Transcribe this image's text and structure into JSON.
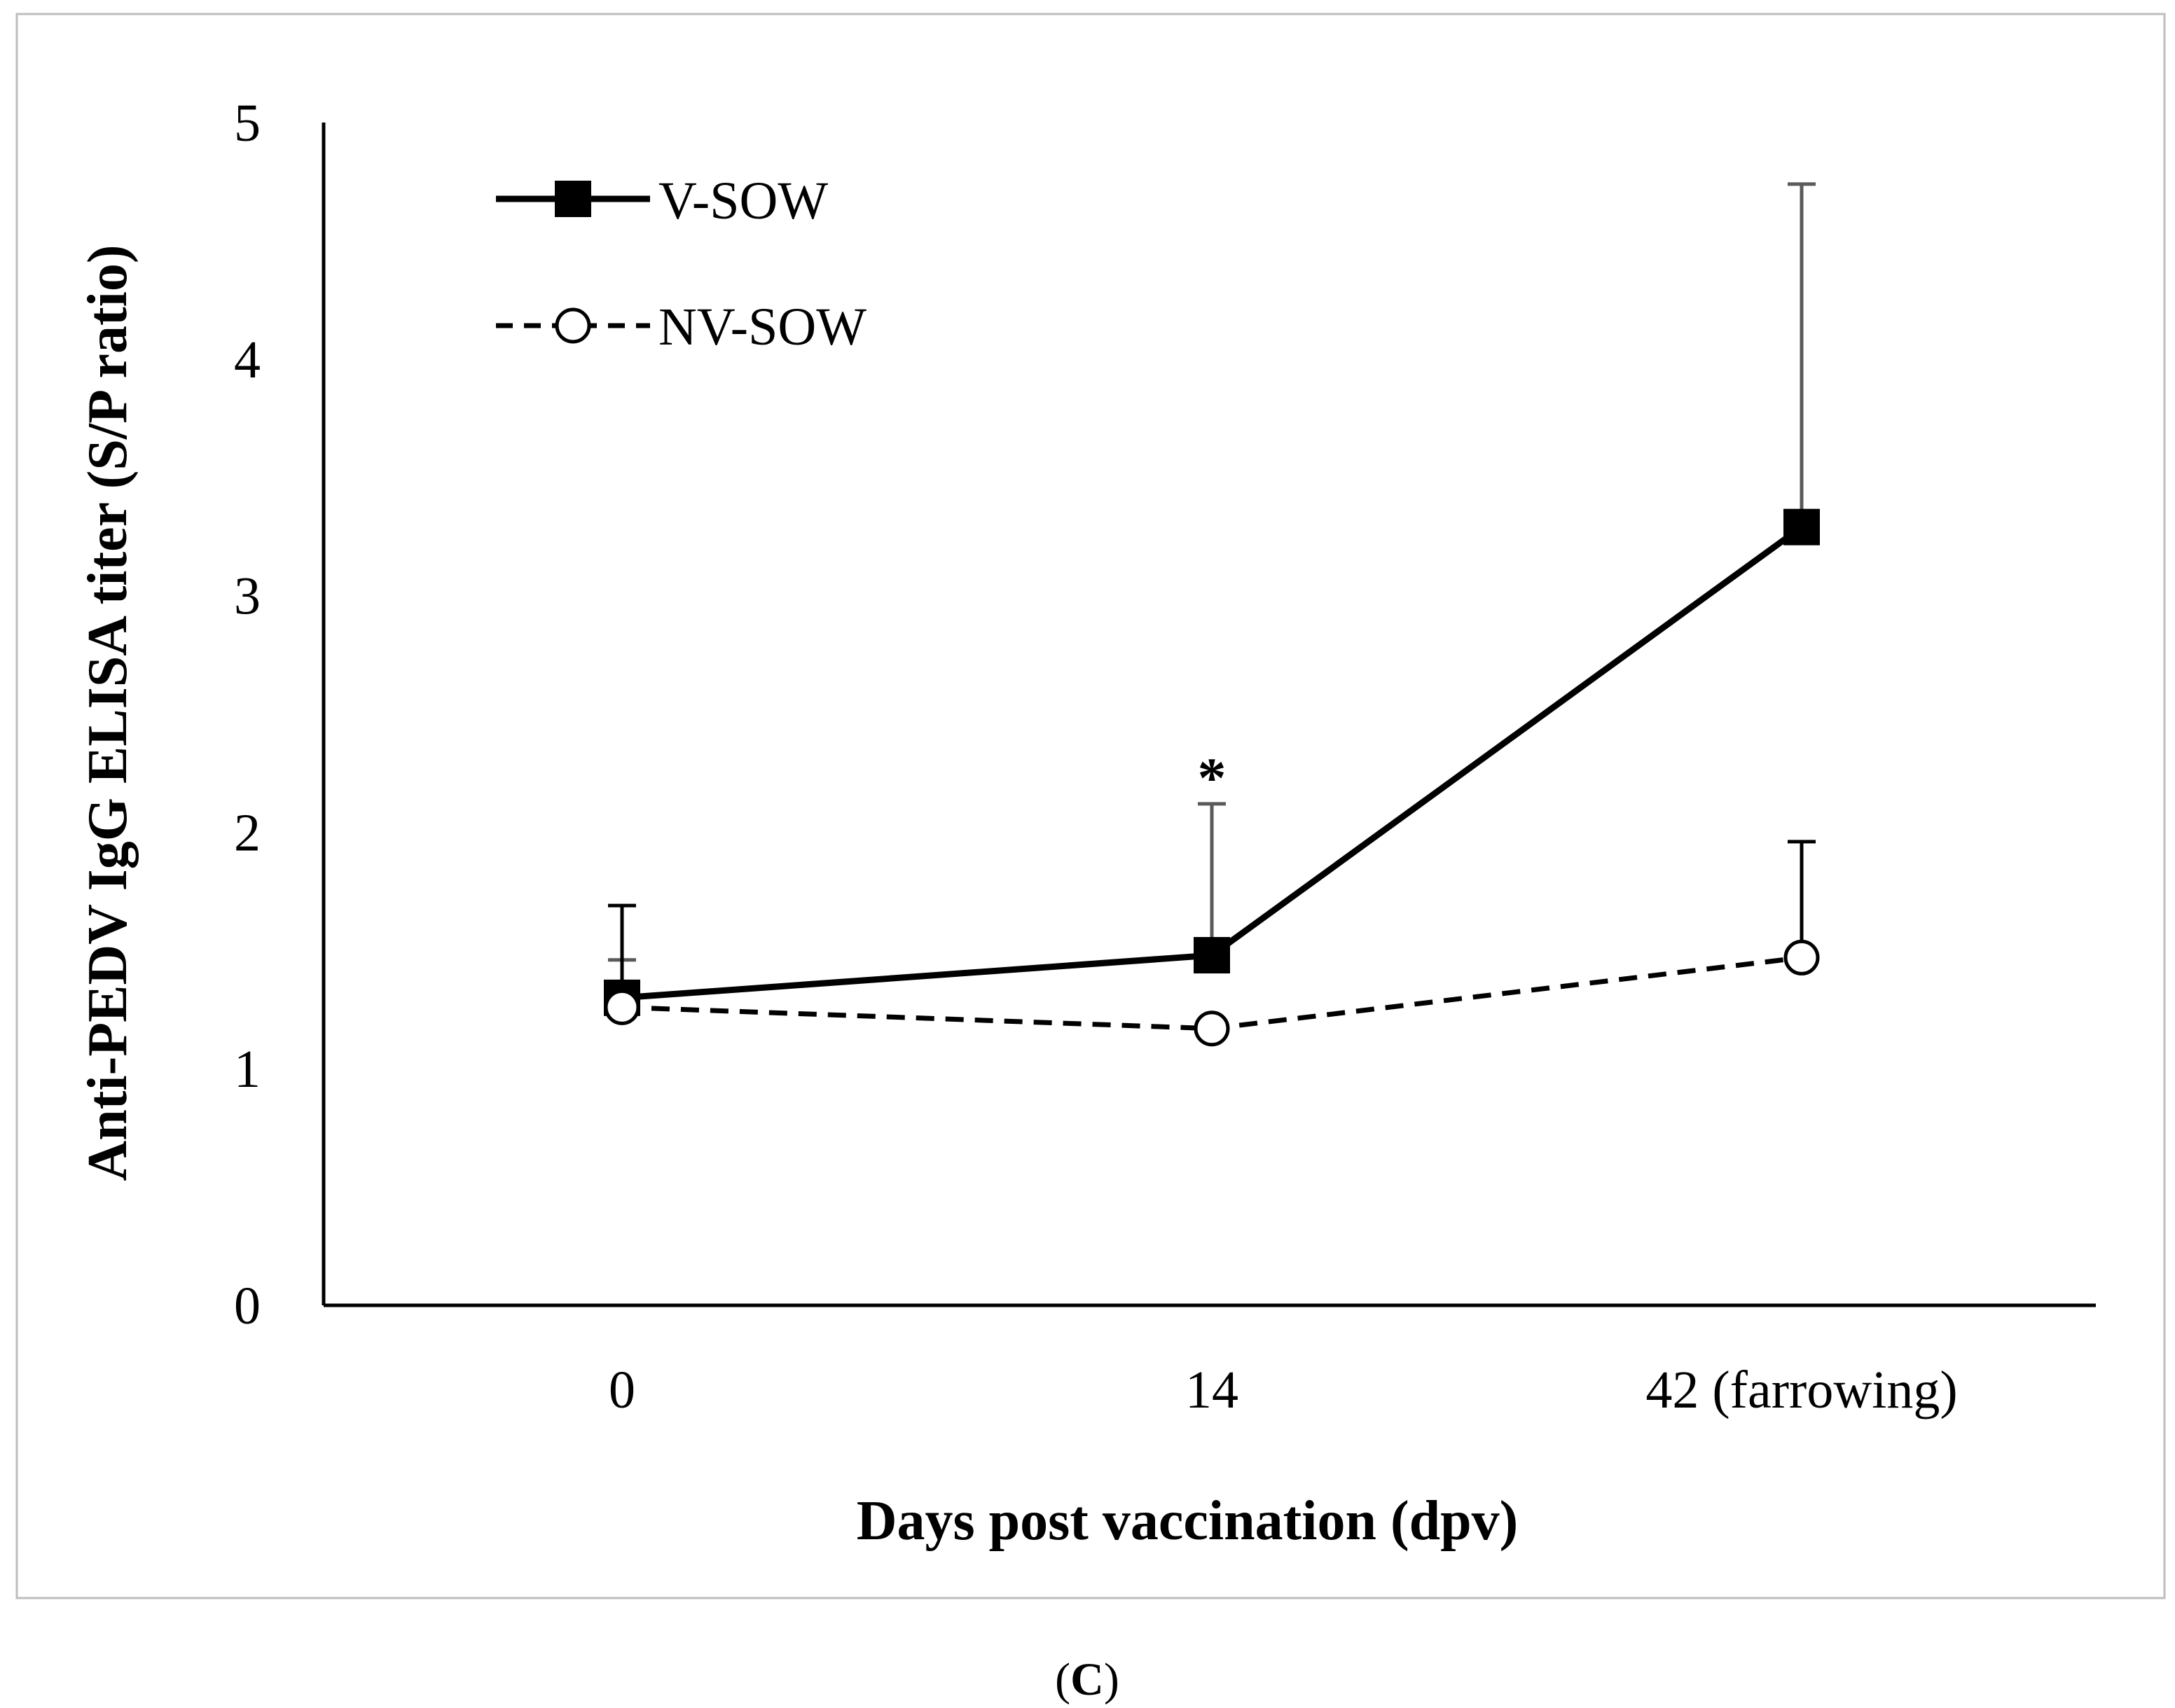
{
  "chart_data": {
    "type": "line",
    "title": "",
    "xlabel": "Days post vaccination (dpv)",
    "ylabel": "Anti-PEDV IgG ELISA titer (S/P ratio)",
    "categories": [
      "0",
      "14",
      "42 (farrowing)"
    ],
    "yticks": [
      "0",
      "1",
      "2",
      "3",
      "4",
      "5"
    ],
    "ylim": [
      0,
      5
    ],
    "grid": false,
    "legend_position": "top-left",
    "series": [
      {
        "name": "V-SOW",
        "values": [
          1.3,
          1.48,
          3.29
        ],
        "error_upper": [
          1.46,
          2.12,
          4.74
        ],
        "line_style": "solid",
        "marker": "filled-square",
        "color": "#000000"
      },
      {
        "name": "NV-SOW",
        "values": [
          1.26,
          1.17,
          1.47
        ],
        "error_upper": [
          1.69,
          1.17,
          1.96
        ],
        "line_style": "dashed",
        "marker": "open-circle",
        "color": "#000000"
      }
    ],
    "annotations": [
      {
        "text": "*",
        "category": "14",
        "y": 2.28
      }
    ]
  },
  "panel_label": {
    "open": "(",
    "letter": "C",
    "close": ")"
  }
}
